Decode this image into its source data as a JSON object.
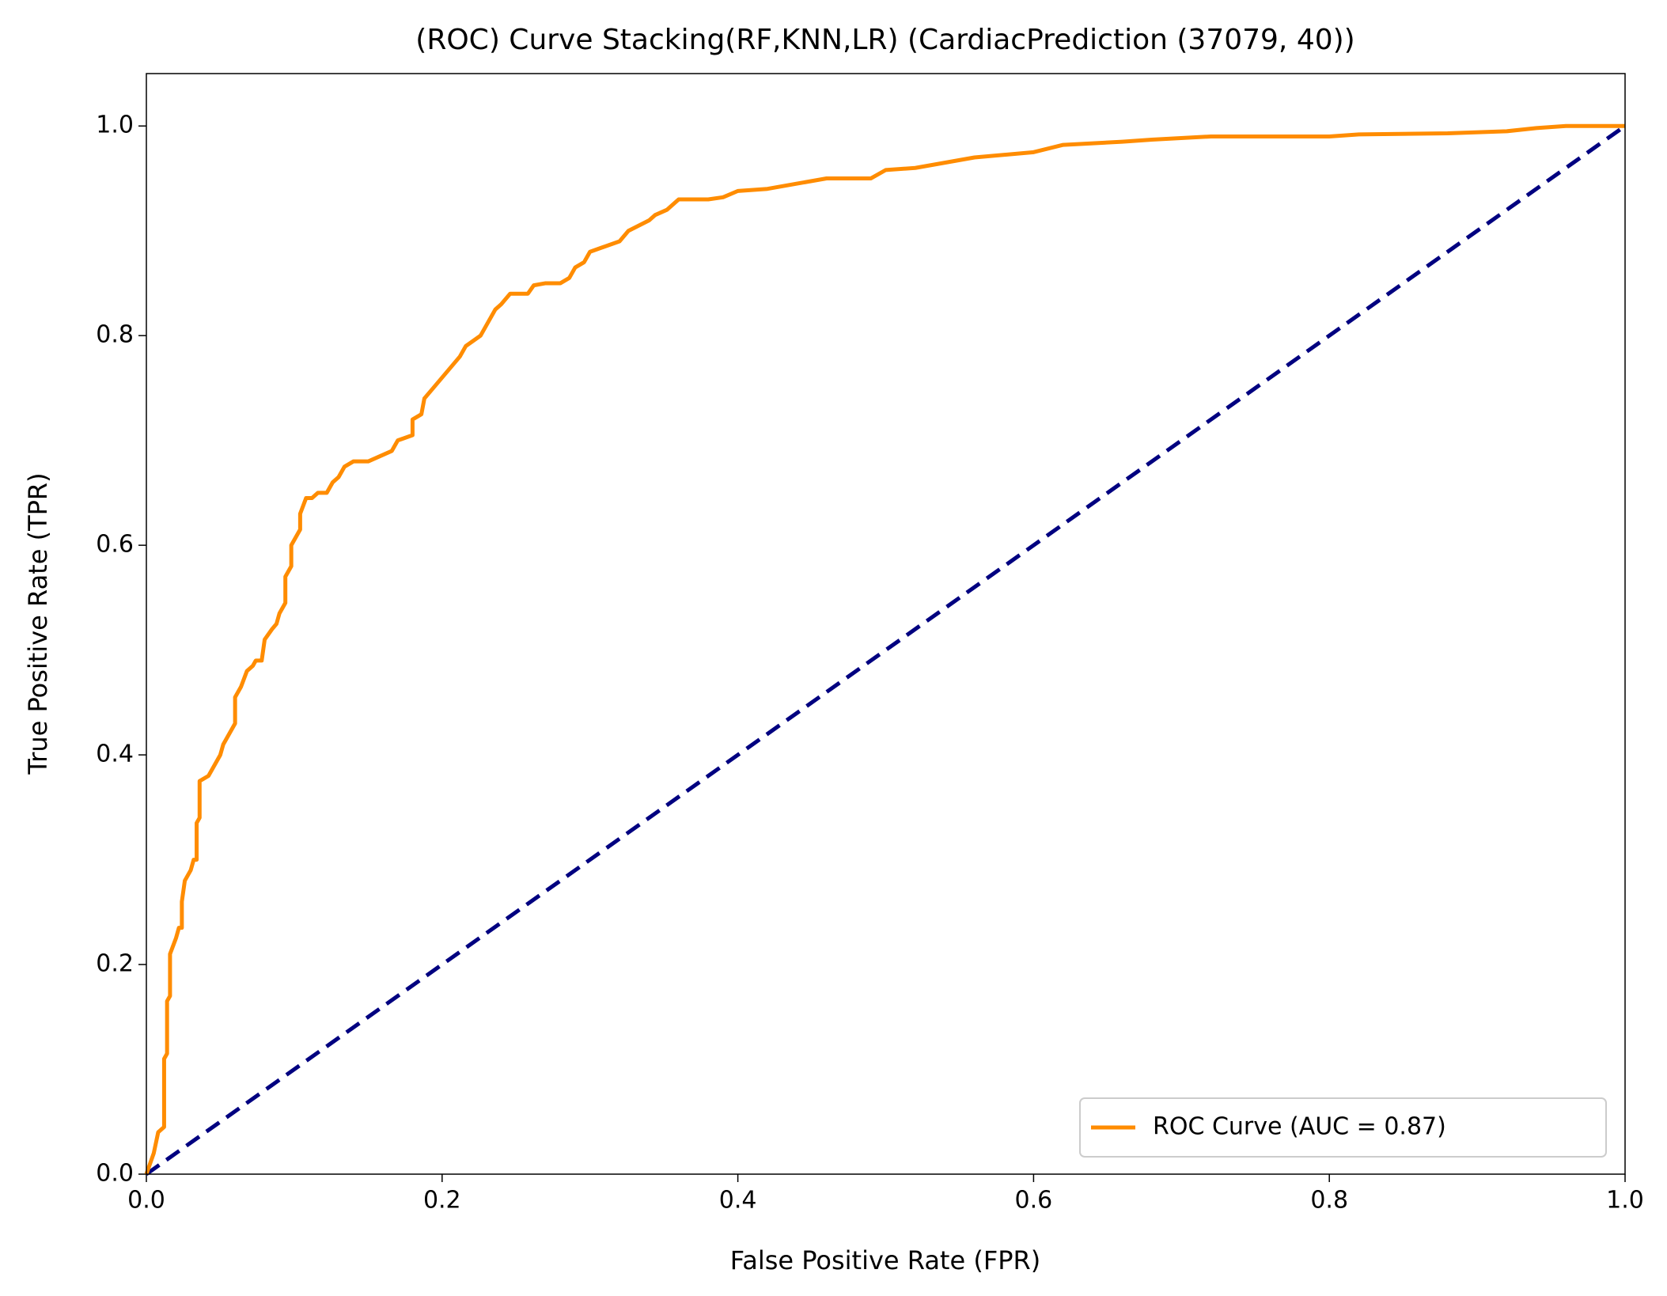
{
  "chart_data": {
    "type": "line",
    "title": "(ROC) Curve Stacking(RF,KNN,LR) (CardiacPrediction (37079, 40))",
    "xlabel": "False Positive Rate (FPR)",
    "ylabel": "True Positive Rate (TPR)",
    "x": [
      0,
      0.005,
      0.008,
      0.012,
      0.012,
      0.014,
      0.014,
      0.016,
      0.016,
      0.02,
      0.022,
      0.024,
      0.024,
      0.026,
      0.03,
      0.032,
      0.034,
      0.034,
      0.036,
      0.036,
      0.042,
      0.046,
      0.05,
      0.052,
      0.056,
      0.06,
      0.06,
      0.064,
      0.068,
      0.072,
      0.074,
      0.078,
      0.08,
      0.085,
      0.088,
      0.09,
      0.094,
      0.094,
      0.098,
      0.098,
      0.102,
      0.104,
      0.104,
      0.108,
      0.112,
      0.116,
      0.122,
      0.126,
      0.13,
      0.134,
      0.14,
      0.15,
      0.158,
      0.166,
      0.17,
      0.18,
      0.18,
      0.186,
      0.188,
      0.194,
      0.2,
      0.206,
      0.212,
      0.216,
      0.226,
      0.23,
      0.236,
      0.24,
      0.246,
      0.258,
      0.262,
      0.27,
      0.28,
      0.286,
      0.29,
      0.296,
      0.3,
      0.31,
      0.32,
      0.326,
      0.34,
      0.344,
      0.352,
      0.36,
      0.38,
      0.39,
      0.4,
      0.42,
      0.44,
      0.46,
      0.49,
      0.5,
      0.52,
      0.54,
      0.56,
      0.6,
      0.62,
      0.66,
      0.68,
      0.72,
      0.8,
      0.82,
      0.88,
      0.92,
      0.94,
      0.96,
      1.0
    ],
    "series": [
      {
        "name": "ROC Curve (AUC = 0.87)",
        "color": "#ff8c00",
        "values": [
          0,
          0.02,
          0.04,
          0.045,
          0.11,
          0.115,
          0.165,
          0.17,
          0.21,
          0.225,
          0.235,
          0.235,
          0.26,
          0.28,
          0.29,
          0.3,
          0.3,
          0.335,
          0.34,
          0.375,
          0.38,
          0.39,
          0.4,
          0.41,
          0.42,
          0.43,
          0.455,
          0.465,
          0.48,
          0.485,
          0.49,
          0.49,
          0.51,
          0.52,
          0.525,
          0.535,
          0.545,
          0.57,
          0.58,
          0.6,
          0.61,
          0.615,
          0.63,
          0.645,
          0.645,
          0.65,
          0.65,
          0.66,
          0.665,
          0.675,
          0.68,
          0.68,
          0.685,
          0.69,
          0.7,
          0.705,
          0.72,
          0.725,
          0.74,
          0.75,
          0.76,
          0.77,
          0.78,
          0.79,
          0.8,
          0.81,
          0.825,
          0.83,
          0.84,
          0.84,
          0.848,
          0.85,
          0.85,
          0.855,
          0.865,
          0.87,
          0.88,
          0.885,
          0.89,
          0.9,
          0.91,
          0.915,
          0.92,
          0.93,
          0.93,
          0.932,
          0.938,
          0.94,
          0.945,
          0.95,
          0.95,
          0.958,
          0.96,
          0.965,
          0.97,
          0.975,
          0.982,
          0.985,
          0.987,
          0.99,
          0.99,
          0.992,
          0.993,
          0.995,
          0.998,
          1.0,
          1.0
        ]
      }
    ],
    "reference_line": {
      "x": [
        0,
        1
      ],
      "values": [
        0,
        1
      ],
      "color": "#000080",
      "dashed": true
    },
    "xlim": [
      0,
      1
    ],
    "ylim": [
      0,
      1.05
    ],
    "xticks": [
      {
        "value": 0,
        "label": "0.0"
      },
      0.2,
      0.4,
      0.6,
      0.8,
      {
        "value": 1,
        "label": "1.0"
      }
    ],
    "yticks": [
      {
        "value": 0,
        "label": "0.0"
      },
      0.2,
      0.4,
      0.6,
      0.8,
      {
        "value": 1,
        "label": "1.0"
      }
    ],
    "legend": "lower right",
    "grid": false
  }
}
